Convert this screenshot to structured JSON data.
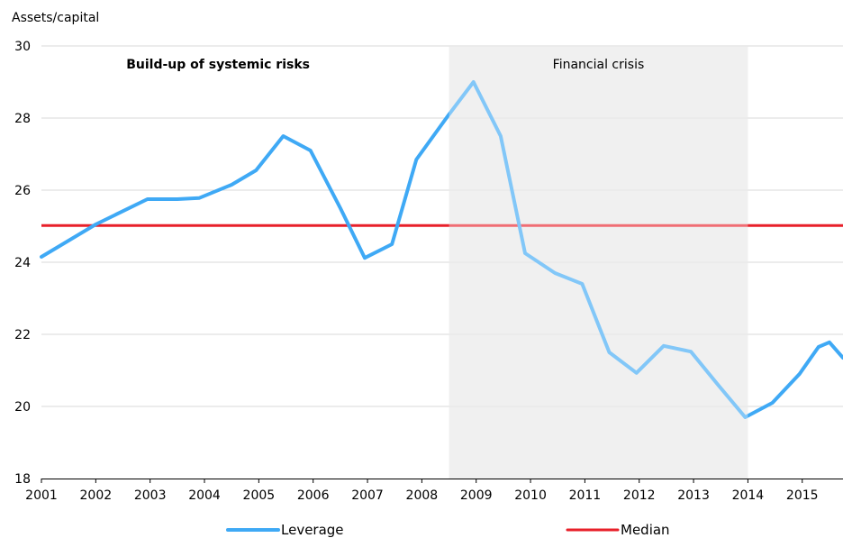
{
  "chart_data": {
    "type": "line",
    "ylabel": "Assets/capital",
    "ylim": [
      18,
      30
    ],
    "yticks": [
      18,
      20,
      22,
      24,
      26,
      28,
      30
    ],
    "xlim": [
      2001,
      2015.75
    ],
    "xticks": [
      2001,
      2002,
      2003,
      2004,
      2005,
      2006,
      2007,
      2008,
      2009,
      2010,
      2011,
      2012,
      2013,
      2014,
      2015
    ],
    "grid": "horizontal",
    "legend_position": "bottom",
    "colors": {
      "leverage": "#3fa9f5",
      "leverage_shaded": "#8cc6f0",
      "median": "#e8202a",
      "median_shaded": "#ef8a8f",
      "shade": "#e9e9e9",
      "grid": "#d9d9d9"
    },
    "shaded_region": {
      "x0": 2008.5,
      "x1": 2014.0,
      "label": "Financial crisis"
    },
    "annotations": [
      {
        "text": "Build-up of systemic risks",
        "x": 2004.25,
        "y": 29.5,
        "bold": true
      }
    ],
    "series": [
      {
        "name": "Leverage",
        "kind": "line",
        "x": [
          2001.0,
          2002.0,
          2002.95,
          2003.5,
          2003.9,
          2004.5,
          2004.95,
          2005.45,
          2005.95,
          2006.5,
          2006.95,
          2007.45,
          2007.9,
          2008.5,
          2008.95,
          2009.45,
          2009.9,
          2010.45,
          2010.95,
          2011.45,
          2011.95,
          2012.45,
          2012.95,
          2013.45,
          2013.95,
          2014.45,
          2014.95,
          2015.3,
          2015.5,
          2015.75
        ],
        "y": [
          24.15,
          25.05,
          25.75,
          25.75,
          25.78,
          26.15,
          26.55,
          27.5,
          27.1,
          25.5,
          24.12,
          24.5,
          26.85,
          28.1,
          29.0,
          27.5,
          24.25,
          23.7,
          23.4,
          21.5,
          20.93,
          21.68,
          21.52,
          20.6,
          19.7,
          20.1,
          20.9,
          21.65,
          21.78,
          21.35
        ]
      },
      {
        "name": "Median",
        "kind": "hline",
        "y": 25.02
      }
    ]
  }
}
